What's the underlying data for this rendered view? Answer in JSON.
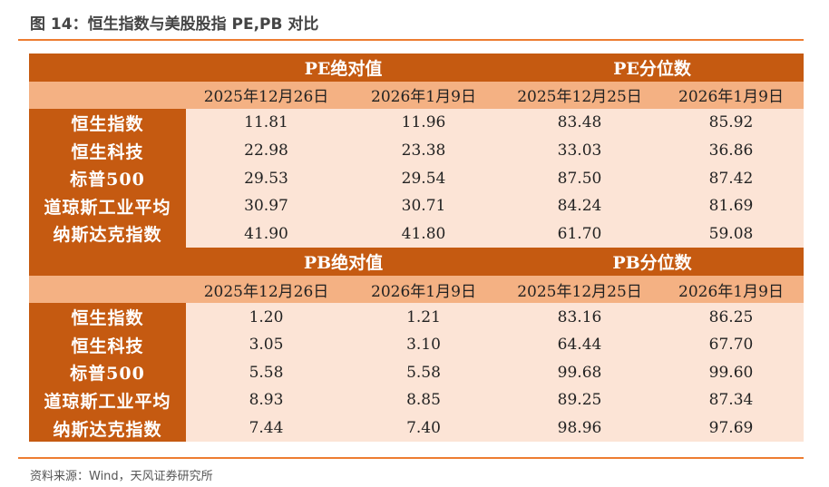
{
  "title": "图 14：恒生指数与美股股指 PE,PB 对比",
  "source": "资料来源：Wind，天风证券研究所",
  "colors": {
    "header": "#c55a11",
    "date_row": "#f4b183",
    "cell": "#fce4d6",
    "rule": "#ed7d31"
  },
  "sections": [
    {
      "headers": [
        "PE绝对值",
        "PE分位数"
      ],
      "dates": [
        "2025年12月26日",
        "2026年1月9日",
        "2025年12月25日",
        "2026年1月9日"
      ],
      "rows": [
        {
          "label": "恒生指数",
          "values": [
            "11.81",
            "11.96",
            "83.48",
            "85.92"
          ]
        },
        {
          "label": "恒生科技",
          "values": [
            "22.98",
            "23.38",
            "33.03",
            "36.86"
          ]
        },
        {
          "label": "标普500",
          "values": [
            "29.53",
            "29.54",
            "87.50",
            "87.42"
          ]
        },
        {
          "label": "道琼斯工业平均",
          "values": [
            "30.97",
            "30.71",
            "84.24",
            "81.69"
          ]
        },
        {
          "label": "纳斯达克指数",
          "values": [
            "41.90",
            "41.80",
            "61.70",
            "59.08"
          ]
        }
      ]
    },
    {
      "headers": [
        "PB绝对值",
        "PB分位数"
      ],
      "dates": [
        "2025年12月26日",
        "2026年1月9日",
        "2025年12月25日",
        "2026年1月9日"
      ],
      "rows": [
        {
          "label": "恒生指数",
          "values": [
            "1.20",
            "1.21",
            "83.16",
            "86.25"
          ]
        },
        {
          "label": "恒生科技",
          "values": [
            "3.05",
            "3.10",
            "64.44",
            "67.70"
          ]
        },
        {
          "label": "标普500",
          "values": [
            "5.58",
            "5.58",
            "99.68",
            "99.60"
          ]
        },
        {
          "label": "道琼斯工业平均",
          "values": [
            "8.93",
            "8.85",
            "89.25",
            "87.34"
          ]
        },
        {
          "label": "纳斯达克指数",
          "values": [
            "7.44",
            "7.40",
            "98.96",
            "97.69"
          ]
        }
      ]
    }
  ]
}
